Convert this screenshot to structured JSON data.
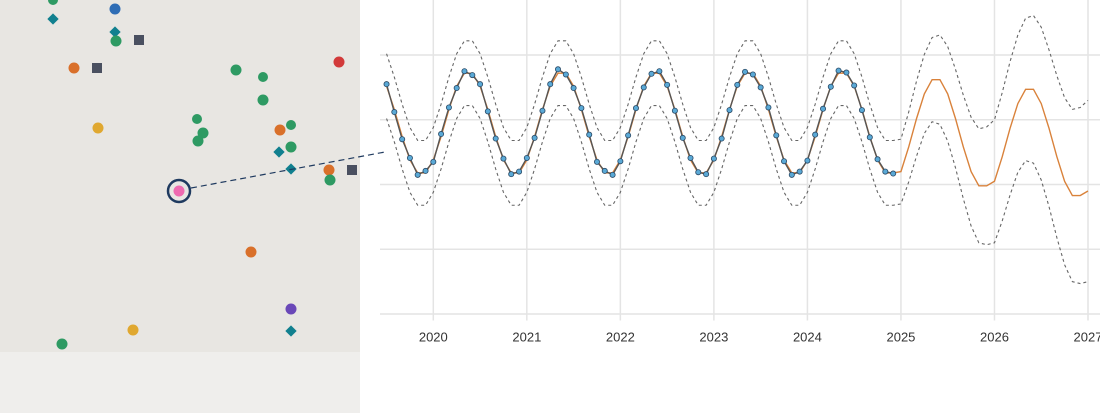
{
  "chart_data": {
    "type": "line",
    "x": [
      2019.5,
      2019.583,
      2019.667,
      2019.75,
      2019.833,
      2019.917,
      2020,
      2020.083,
      2020.167,
      2020.25,
      2020.333,
      2020.417,
      2020.5,
      2020.583,
      2020.667,
      2020.75,
      2020.833,
      2020.917,
      2021,
      2021.083,
      2021.167,
      2021.25,
      2021.333,
      2021.417,
      2021.5,
      2021.583,
      2021.667,
      2021.75,
      2021.833,
      2021.917,
      2022,
      2022.083,
      2022.167,
      2022.25,
      2022.333,
      2022.417,
      2022.5,
      2022.583,
      2022.667,
      2022.75,
      2022.833,
      2022.917,
      2023,
      2023.083,
      2023.167,
      2023.25,
      2023.333,
      2023.417,
      2023.5,
      2023.583,
      2023.667,
      2023.75,
      2023.833,
      2023.917,
      2024,
      2024.083,
      2024.167,
      2024.25,
      2024.333,
      2024.417,
      2024.5,
      2024.583,
      2024.667,
      2024.75,
      2024.833,
      2024.917,
      2025,
      2025.083,
      2025.167,
      2025.25,
      2025.333,
      2025.417,
      2025.5,
      2025.583,
      2025.667,
      2025.75,
      2025.833,
      2025.917,
      2026,
      2026.083,
      2026.167,
      2026.25,
      2026.333,
      2026.417,
      2026.5,
      2026.583,
      2026.667,
      2026.75,
      2026.833,
      2026.917,
      2027
    ],
    "series": [
      {
        "color": "#666666",
        "dash": true,
        "values": [
          4.02,
          3.66,
          3.24,
          2.88,
          2.68,
          2.68,
          2.88,
          3.24,
          3.66,
          4.02,
          4.22,
          4.22,
          4.02,
          3.66,
          3.24,
          2.88,
          2.68,
          2.68,
          2.88,
          3.24,
          3.66,
          4.02,
          4.22,
          4.22,
          4.02,
          3.66,
          3.24,
          2.88,
          2.68,
          2.68,
          2.88,
          3.24,
          3.66,
          4.02,
          4.22,
          4.22,
          4.02,
          3.66,
          3.24,
          2.88,
          2.68,
          2.68,
          2.88,
          3.24,
          3.66,
          4.02,
          4.22,
          4.22,
          4.02,
          3.66,
          3.24,
          2.88,
          2.68,
          2.68,
          2.88,
          3.24,
          3.66,
          4.02,
          4.22,
          4.22,
          4.02,
          3.66,
          3.24,
          2.88,
          2.68,
          2.68,
          2.7,
          3.12,
          3.6,
          4.01,
          4.27,
          4.31,
          4.13,
          3.78,
          3.38,
          3.04,
          2.86,
          2.89,
          3.0,
          3.42,
          3.9,
          4.31,
          4.57,
          4.61,
          4.43,
          4.08,
          3.68,
          3.34,
          3.16,
          3.19,
          3.3
        ]
      },
      {
        "color": "#666666",
        "dash": true,
        "values": [
          3.02,
          2.66,
          2.24,
          1.88,
          1.68,
          1.68,
          1.88,
          2.24,
          2.66,
          3.02,
          3.22,
          3.22,
          3.02,
          2.66,
          2.24,
          1.88,
          1.68,
          1.68,
          1.88,
          2.24,
          2.66,
          3.02,
          3.22,
          3.22,
          3.02,
          2.66,
          2.24,
          1.88,
          1.68,
          1.68,
          1.88,
          2.24,
          2.66,
          3.02,
          3.22,
          3.22,
          3.02,
          2.66,
          2.24,
          1.88,
          1.68,
          1.68,
          1.88,
          2.24,
          2.66,
          3.02,
          3.22,
          3.22,
          3.02,
          2.66,
          2.24,
          1.88,
          1.68,
          1.68,
          1.88,
          2.24,
          2.66,
          3.02,
          3.22,
          3.22,
          3.02,
          2.66,
          2.24,
          1.88,
          1.68,
          1.68,
          1.7,
          2.04,
          2.44,
          2.79,
          2.97,
          2.93,
          2.67,
          2.26,
          1.78,
          1.36,
          1.1,
          1.07,
          1.1,
          1.44,
          1.84,
          2.19,
          2.37,
          2.33,
          2.07,
          1.66,
          1.18,
          0.76,
          0.5,
          0.47,
          0.5
        ]
      },
      {
        "color": "#d9823b",
        "values": [
          3.52,
          3.16,
          2.74,
          2.38,
          2.18,
          2.18,
          2.38,
          2.74,
          3.16,
          3.52,
          3.72,
          3.72,
          3.52,
          3.16,
          2.74,
          2.38,
          2.18,
          2.18,
          2.38,
          2.74,
          3.16,
          3.52,
          3.72,
          3.72,
          3.52,
          3.16,
          2.74,
          2.38,
          2.18,
          2.18,
          2.38,
          2.74,
          3.16,
          3.52,
          3.72,
          3.72,
          3.52,
          3.16,
          2.74,
          2.38,
          2.18,
          2.18,
          2.38,
          2.74,
          3.16,
          3.52,
          3.72,
          3.72,
          3.52,
          3.16,
          2.74,
          2.38,
          2.18,
          2.18,
          2.38,
          2.74,
          3.16,
          3.52,
          3.72,
          3.72,
          3.52,
          3.16,
          2.74,
          2.38,
          2.18,
          2.18,
          2.2,
          2.58,
          3.02,
          3.4,
          3.62,
          3.62,
          3.4,
          3.02,
          2.58,
          2.2,
          1.98,
          1.98,
          2.05,
          2.43,
          2.87,
          3.25,
          3.47,
          3.47,
          3.25,
          2.87,
          2.43,
          2.05,
          1.83,
          1.83,
          1.9
        ]
      },
      {
        "color": "#5aa9d6",
        "markers": true,
        "values": [
          3.55,
          3.12,
          2.7,
          2.41,
          2.15,
          2.21,
          2.35,
          2.78,
          3.19,
          3.49,
          3.75,
          3.69,
          3.55,
          3.13,
          2.71,
          2.4,
          2.16,
          2.2,
          2.41,
          2.72,
          3.14,
          3.55,
          3.78,
          3.7,
          3.49,
          3.18,
          2.77,
          2.35,
          2.21,
          2.15,
          2.36,
          2.76,
          3.18,
          3.5,
          3.71,
          3.75,
          3.54,
          3.14,
          2.72,
          2.41,
          2.19,
          2.16,
          2.4,
          2.71,
          3.15,
          3.54,
          3.74,
          3.7,
          3.5,
          3.19,
          2.76,
          2.36,
          2.15,
          2.2,
          2.37,
          2.77,
          3.17,
          3.51,
          3.76,
          3.73,
          3.53,
          3.15,
          2.73,
          2.39,
          2.2,
          2.17,
          null,
          null,
          null,
          null,
          null,
          null,
          null,
          null,
          null,
          null,
          null,
          null,
          null,
          null,
          null,
          null,
          null,
          null,
          null,
          null,
          null,
          null,
          null,
          null,
          null
        ]
      }
    ],
    "xlim": [
      2019.43,
      2027
    ],
    "xticks": [
      2020,
      2021,
      2022,
      2023,
      2024,
      2025,
      2026,
      2027
    ],
    "ylim": [
      -0.1,
      4.85
    ],
    "yticks": [
      0,
      1,
      2,
      3,
      4
    ],
    "grid": true
  }
}
